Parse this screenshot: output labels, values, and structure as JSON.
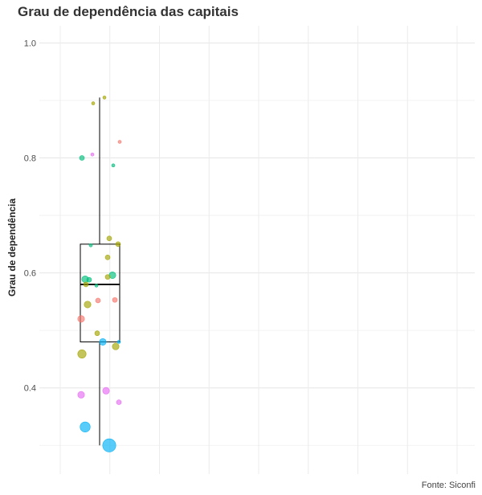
{
  "chart_data": {
    "type": "scatter",
    "title": "Grau de dependência das capitais",
    "ylabel": "Grau de dependência",
    "xlabel": "",
    "caption": "Fonte: Siconfi",
    "ylim": [
      0.25,
      1.03
    ],
    "yticks": [
      0.4,
      0.6,
      0.8,
      1.0
    ],
    "ytick_labels": [
      "0.4",
      "0.6",
      "0.8",
      "1.0"
    ],
    "grid": true,
    "legend": "none",
    "boxplot": {
      "min": 0.3,
      "q1": 0.48,
      "median": 0.58,
      "q3": 0.65,
      "max": 0.905,
      "color": "#000000"
    },
    "point_colors": {
      "red": "#f8766d",
      "olive": "#a3a500",
      "green": "#00bf7d",
      "blue": "#00b0f6",
      "pink": "#e76bf3"
    },
    "points": [
      {
        "y": 0.905,
        "color": "olive",
        "size": 1
      },
      {
        "y": 0.895,
        "color": "olive",
        "size": 1
      },
      {
        "y": 0.828,
        "color": "red",
        "size": 1
      },
      {
        "y": 0.806,
        "color": "pink",
        "size": 1
      },
      {
        "y": 0.8,
        "color": "green",
        "size": 2
      },
      {
        "y": 0.787,
        "color": "green",
        "size": 1
      },
      {
        "y": 0.66,
        "color": "olive",
        "size": 2
      },
      {
        "y": 0.65,
        "color": "olive",
        "size": 2
      },
      {
        "y": 0.648,
        "color": "green",
        "size": 1
      },
      {
        "y": 0.627,
        "color": "olive",
        "size": 2
      },
      {
        "y": 0.596,
        "color": "green",
        "size": 3
      },
      {
        "y": 0.593,
        "color": "olive",
        "size": 2
      },
      {
        "y": 0.589,
        "color": "green",
        "size": 3
      },
      {
        "y": 0.588,
        "color": "green",
        "size": 2
      },
      {
        "y": 0.58,
        "color": "olive",
        "size": 2
      },
      {
        "y": 0.578,
        "color": "green",
        "size": 1
      },
      {
        "y": 0.553,
        "color": "red",
        "size": 2
      },
      {
        "y": 0.552,
        "color": "red",
        "size": 2
      },
      {
        "y": 0.545,
        "color": "olive",
        "size": 3
      },
      {
        "y": 0.52,
        "color": "red",
        "size": 3
      },
      {
        "y": 0.495,
        "color": "olive",
        "size": 2
      },
      {
        "y": 0.48,
        "color": "blue",
        "size": 3
      },
      {
        "y": 0.48,
        "color": "blue",
        "size": 1
      },
      {
        "y": 0.472,
        "color": "olive",
        "size": 3
      },
      {
        "y": 0.459,
        "color": "olive",
        "size": 4
      },
      {
        "y": 0.395,
        "color": "pink",
        "size": 3
      },
      {
        "y": 0.388,
        "color": "pink",
        "size": 3
      },
      {
        "y": 0.375,
        "color": "pink",
        "size": 2
      },
      {
        "y": 0.332,
        "color": "blue",
        "size": 5
      },
      {
        "y": 0.3,
        "color": "blue",
        "size": 6
      }
    ]
  }
}
